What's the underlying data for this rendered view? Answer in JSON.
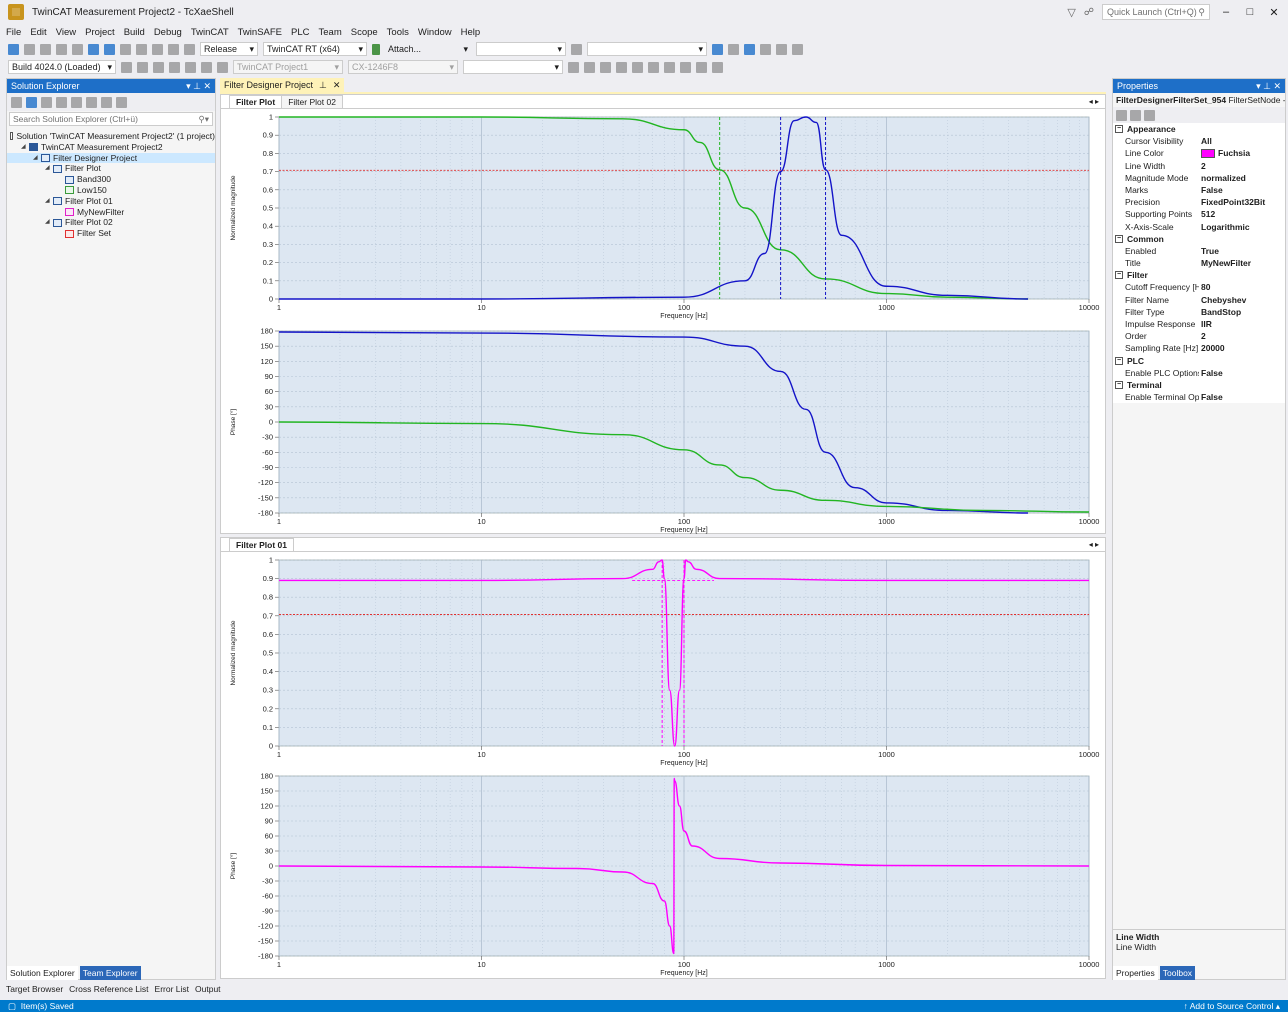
{
  "window": {
    "title": "TwinCAT Measurement Project2 - TcXaeShell",
    "quick_launch_placeholder": "Quick Launch (Ctrl+Q)"
  },
  "menu": [
    "File",
    "Edit",
    "View",
    "Project",
    "Build",
    "Debug",
    "TwinCAT",
    "TwinSAFE",
    "PLC",
    "Team",
    "Scope",
    "Tools",
    "Window",
    "Help"
  ],
  "toolbar": {
    "config": "Release",
    "platform": "TwinCAT RT (x64)",
    "attach": "Attach...",
    "build": "Build 4024.0 (Loaded)",
    "project_combo": "TwinCAT Project1",
    "target_combo": "CX-1246F8"
  },
  "solution_explorer": {
    "title": "Solution Explorer",
    "search_placeholder": "Search Solution Explorer (Ctrl+ü)",
    "tree": [
      {
        "label": "Solution 'TwinCAT Measurement Project2' (1 project)",
        "level": 0,
        "icon": "solution-icon",
        "arrow": ""
      },
      {
        "label": "TwinCAT Measurement Project2",
        "level": 1,
        "icon": "project-icon",
        "arrow": "◢"
      },
      {
        "label": "Filter Designer Project",
        "level": 2,
        "icon": "filter-project-icon",
        "arrow": "◢",
        "selected": true
      },
      {
        "label": "Filter Plot",
        "level": 3,
        "icon": "filter-plot-icon",
        "arrow": "◢"
      },
      {
        "label": "Band300",
        "level": 4,
        "icon": "filter-blue-icon",
        "arrow": ""
      },
      {
        "label": "Low150",
        "level": 4,
        "icon": "filter-green-icon",
        "arrow": ""
      },
      {
        "label": "Filter Plot 01",
        "level": 3,
        "icon": "filter-plot-icon",
        "arrow": "◢"
      },
      {
        "label": "MyNewFilter",
        "level": 4,
        "icon": "filter-pink-icon",
        "arrow": ""
      },
      {
        "label": "Filter Plot 02",
        "level": 3,
        "icon": "filter-plot-icon",
        "arrow": "◢"
      },
      {
        "label": "Filter Set",
        "level": 4,
        "icon": "filter-set-icon",
        "arrow": ""
      }
    ],
    "bottom_tabs": [
      "Solution Explorer",
      "Team Explorer"
    ]
  },
  "bottom_tool_tabs": [
    "Target Browser",
    "Cross Reference List",
    "Error List",
    "Output"
  ],
  "document": {
    "tab": "Filter Designer Project",
    "upper_tabs": [
      "Filter Plot",
      "Filter Plot 02"
    ],
    "lower_tabs": [
      "Filter Plot 01"
    ]
  },
  "properties": {
    "title": "Properties",
    "object": "FilterDesignerFilterSet_954",
    "object_type": "FilterSetNode - F",
    "categories": [
      {
        "name": "Appearance",
        "rows": [
          {
            "name": "Cursor Visibility",
            "value": "All"
          },
          {
            "name": "Line Color",
            "value": "Fuchsia",
            "swatch": "#ff00ff"
          },
          {
            "name": "Line Width",
            "value": "2"
          },
          {
            "name": "Magnitude Mode",
            "value": "normalized"
          },
          {
            "name": "Marks",
            "value": "False"
          },
          {
            "name": "Precision",
            "value": "FixedPoint32Bit"
          },
          {
            "name": "Supporting Points",
            "value": "512"
          },
          {
            "name": "X-Axis-Scale",
            "value": "Logarithmic"
          }
        ]
      },
      {
        "name": "Common",
        "rows": [
          {
            "name": "Enabled",
            "value": "True"
          },
          {
            "name": "Title",
            "value": "MyNewFilter"
          }
        ]
      },
      {
        "name": "Filter",
        "rows": [
          {
            "name": "Cutoff Frequency [Hz]",
            "value": "80"
          },
          {
            "name": "Filter Name",
            "value": "Chebyshev"
          },
          {
            "name": "Filter Type",
            "value": "BandStop"
          },
          {
            "name": "Impulse Response",
            "value": "IIR"
          },
          {
            "name": "Order",
            "value": "2"
          },
          {
            "name": "Sampling Rate [Hz]",
            "value": "20000"
          }
        ]
      },
      {
        "name": "PLC",
        "rows": [
          {
            "name": "Enable PLC Options",
            "value": "False"
          }
        ]
      },
      {
        "name": "Terminal",
        "rows": [
          {
            "name": "Enable Terminal Options",
            "value": "False"
          }
        ]
      }
    ],
    "description_title": "Line Width",
    "description_text": "Line Width",
    "bottom_tabs": [
      "Properties",
      "Toolbox"
    ]
  },
  "statusbar": {
    "left": "Item(s) Saved",
    "right": "Add to Source Control"
  },
  "chart_data": [
    {
      "type": "line",
      "xlabel": "Frequency [Hz]",
      "ylabel": "Normalized magnitude",
      "xscale": "log",
      "xlim": [
        1,
        10000
      ],
      "ylim": [
        0,
        1
      ],
      "xticks": [
        "1",
        "10",
        "100",
        "1000",
        "10000"
      ],
      "yticks": [
        "0",
        "0.1",
        "0.2",
        "0.3",
        "0.4",
        "0.5",
        "0.6",
        "0.7",
        "0.8",
        "0.9",
        "1"
      ],
      "grid": true,
      "reference_line": 0.707,
      "series": [
        {
          "name": "Low150",
          "color": "#22b522",
          "x": [
            1,
            10,
            50,
            100,
            120,
            150,
            200,
            300,
            500,
            1000,
            2000,
            5000
          ],
          "y": [
            1,
            1,
            0.99,
            0.93,
            0.86,
            0.71,
            0.5,
            0.27,
            0.11,
            0.03,
            0.01,
            0.0
          ],
          "cursors": [
            150
          ]
        },
        {
          "name": "Band300",
          "color": "#1414c8",
          "x": [
            1,
            10,
            100,
            200,
            250,
            300,
            350,
            400,
            450,
            500,
            600,
            1000,
            2000,
            5000
          ],
          "y": [
            0,
            0,
            0.01,
            0.1,
            0.25,
            0.7,
            0.98,
            1.0,
            0.97,
            0.71,
            0.35,
            0.07,
            0.02,
            0.0
          ],
          "cursors": [
            300,
            500
          ]
        }
      ]
    },
    {
      "type": "line",
      "xlabel": "Frequency [Hz]",
      "ylabel": "Phase [°]",
      "xscale": "log",
      "xlim": [
        1,
        10000
      ],
      "ylim": [
        -180,
        180
      ],
      "xticks": [
        "1",
        "10",
        "100",
        "1000",
        "10000"
      ],
      "yticks": [
        "180",
        "150",
        "120",
        "90",
        "60",
        "30",
        "0",
        "-30",
        "-60",
        "-90",
        "-120",
        "-150",
        "-180"
      ],
      "grid": true,
      "series": [
        {
          "name": "Band300",
          "color": "#1414c8",
          "x": [
            1,
            10,
            100,
            200,
            300,
            400,
            500,
            700,
            1000,
            2000,
            5000
          ],
          "y": [
            178,
            176,
            168,
            150,
            100,
            25,
            -60,
            -130,
            -160,
            -175,
            -180
          ]
        },
        {
          "name": "Low150",
          "color": "#22b522",
          "x": [
            1,
            10,
            50,
            100,
            150,
            200,
            300,
            500,
            1000,
            3000,
            10000
          ],
          "y": [
            0,
            -3,
            -25,
            -55,
            -85,
            -110,
            -135,
            -155,
            -167,
            -175,
            -178
          ]
        }
      ]
    },
    {
      "type": "line",
      "xlabel": "Frequency [Hz]",
      "ylabel": "Normalized magnitude",
      "xscale": "log",
      "xlim": [
        1,
        10000
      ],
      "ylim": [
        0,
        1
      ],
      "xticks": [
        "1",
        "10",
        "100",
        "1000",
        "10000"
      ],
      "yticks": [
        "0",
        "0.1",
        "0.2",
        "0.3",
        "0.4",
        "0.5",
        "0.6",
        "0.7",
        "0.8",
        "0.9",
        "1"
      ],
      "grid": true,
      "reference_line": 0.707,
      "series": [
        {
          "name": "MyNewFilter",
          "color": "#ff00ff",
          "x": [
            1,
            10,
            50,
            70,
            75,
            78,
            80,
            85,
            90,
            95,
            100,
            102,
            105,
            115,
            150,
            1000,
            10000
          ],
          "y": [
            0.89,
            0.89,
            0.9,
            0.95,
            0.99,
            1.0,
            0.9,
            0.3,
            0.0,
            0.3,
            0.9,
            1.0,
            0.99,
            0.95,
            0.9,
            0.89,
            0.89
          ],
          "cursors": [
            78,
            100
          ],
          "cursor_level": 0.89
        }
      ]
    },
    {
      "type": "line",
      "xlabel": "Frequency [Hz]",
      "ylabel": "Phase [°]",
      "xscale": "log",
      "xlim": [
        1,
        10000
      ],
      "ylim": [
        -180,
        180
      ],
      "xticks": [
        "1",
        "10",
        "100",
        "1000",
        "10000"
      ],
      "yticks": [
        "180",
        "150",
        "120",
        "90",
        "60",
        "30",
        "0",
        "-30",
        "-60",
        "-90",
        "-120",
        "-150",
        "-180"
      ],
      "grid": true,
      "series": [
        {
          "name": "MyNewFilter",
          "color": "#ff00ff",
          "x": [
            1,
            10,
            30,
            50,
            70,
            80,
            85,
            89,
            89.5,
            90,
            95,
            100,
            110,
            150,
            300,
            1000,
            10000
          ],
          "y": [
            0,
            -2,
            -5,
            -12,
            -35,
            -70,
            -120,
            -175,
            175,
            170,
            120,
            70,
            40,
            15,
            6,
            1,
            0
          ]
        }
      ]
    }
  ]
}
